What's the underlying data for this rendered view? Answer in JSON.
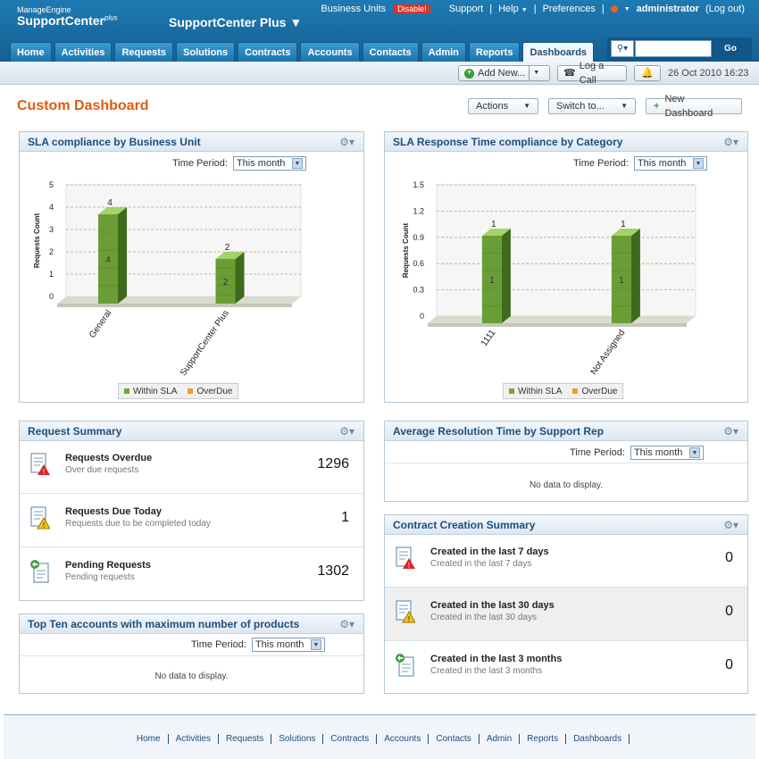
{
  "header": {
    "brand_small": "ManageEngine",
    "brand_big": "SupportCenter",
    "brand_sup": "plus",
    "product": "SupportCenter Plus",
    "business_units": "Business Units",
    "disable": "Disable!",
    "support": "Support",
    "help": "Help",
    "preferences": "Preferences",
    "user": "administrator",
    "logout": "(Log out)"
  },
  "tabs": [
    "Home",
    "Activities",
    "Requests",
    "Solutions",
    "Contracts",
    "Accounts",
    "Contacts",
    "Admin",
    "Reports",
    "Dashboards"
  ],
  "active_tab": "Dashboards",
  "search": {
    "go": "Go",
    "value": ""
  },
  "subbar": {
    "add_new": "Add New...",
    "log_call": "Log a Call",
    "datetime": "26 Oct 2010 16:23"
  },
  "dashboard": {
    "title": "Custom Dashboard",
    "actions": "Actions",
    "switch_to": "Switch to...",
    "new_dashboard": "New Dashboard"
  },
  "time_period_label": "Time Period:",
  "time_period_value": "This month",
  "legend": {
    "within_sla": "Within SLA",
    "overdue": "OverDue",
    "within_color": "#6fa83a",
    "overdue_color": "#f0a020"
  },
  "panels": {
    "sla_bu": {
      "title": "SLA compliance by Business Unit",
      "chart_data": {
        "type": "bar",
        "ylabel": "Requests Count",
        "categories": [
          "General",
          "SupportCenter Plus"
        ],
        "series": [
          {
            "name": "Within SLA",
            "values": [
              4,
              2
            ]
          },
          {
            "name": "OverDue",
            "values": [
              0,
              0
            ]
          }
        ],
        "ylim": [
          0,
          5
        ],
        "yticks": [
          "0",
          "1",
          "2",
          "3",
          "4",
          "5"
        ],
        "data_labels": [
          "4",
          "2"
        ]
      }
    },
    "sla_cat": {
      "title": "SLA Response Time compliance by Category",
      "chart_data": {
        "type": "bar",
        "ylabel": "Requests Count",
        "categories": [
          "1111",
          "Not Assigned"
        ],
        "series": [
          {
            "name": "Within SLA",
            "values": [
              1,
              1
            ]
          },
          {
            "name": "OverDue",
            "values": [
              0,
              0
            ]
          }
        ],
        "ylim": [
          0,
          1.5
        ],
        "yticks": [
          "0",
          "0.3",
          "0.6",
          "0.9",
          "1.2",
          "1.5"
        ],
        "data_labels": [
          "1",
          "1"
        ]
      }
    },
    "request_summary": {
      "title": "Request Summary",
      "rows": [
        {
          "title": "Requests Overdue",
          "desc": "Over due requests",
          "value": "1296"
        },
        {
          "title": "Requests Due Today",
          "desc": "Requests due to be completed today",
          "value": "1"
        },
        {
          "title": "Pending Requests",
          "desc": "Pending requests",
          "value": "1302"
        }
      ]
    },
    "avg_resolution": {
      "title": "Average Resolution Time by Support Rep",
      "nodata": "No data to display."
    },
    "contract_summary": {
      "title": "Contract Creation Summary",
      "rows": [
        {
          "title": "Created in the last 7 days",
          "desc": "Created in the last 7 days",
          "value": "0"
        },
        {
          "title": "Created in the last 30 days",
          "desc": "Created in the last 30 days",
          "value": "0"
        },
        {
          "title": "Created in the last 3 months",
          "desc": "Created in the last 3 months",
          "value": "0"
        }
      ]
    },
    "top_accounts": {
      "title": "Top Ten accounts with maximum number of products",
      "nodata": "No data to display."
    }
  },
  "footer": [
    "Home",
    "Activities",
    "Requests",
    "Solutions",
    "Contracts",
    "Accounts",
    "Contacts",
    "Admin",
    "Reports",
    "Dashboards"
  ]
}
